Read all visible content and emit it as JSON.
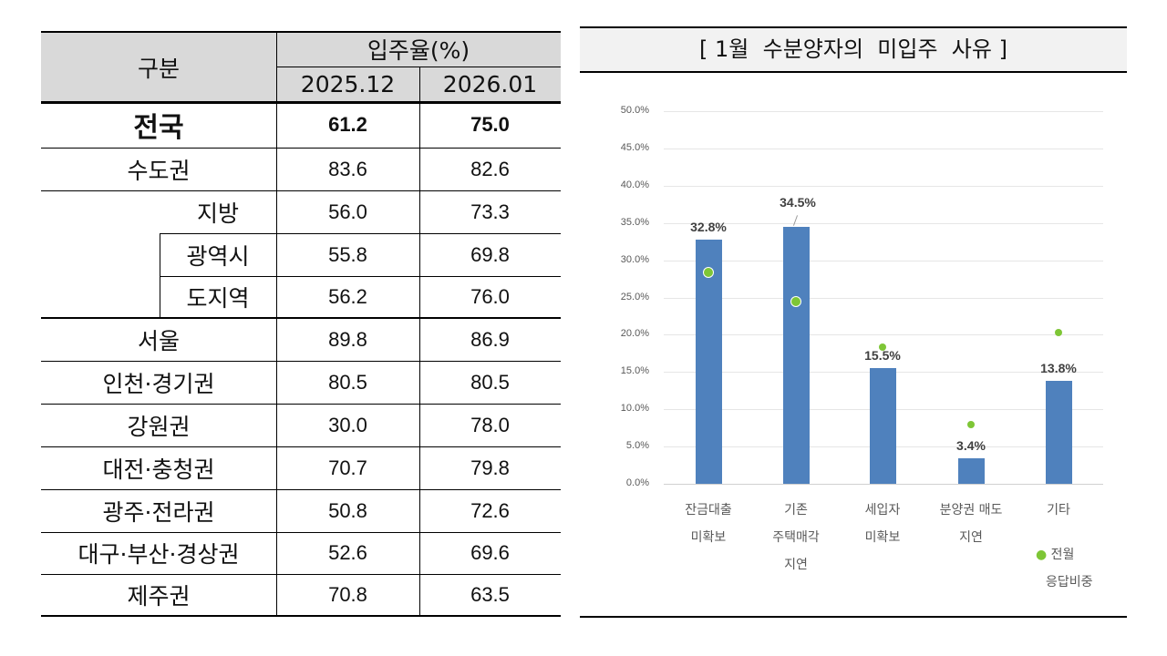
{
  "table": {
    "header_category": "구분",
    "header_group": "입주율(%)",
    "columns": [
      "2025.12",
      "2026.01"
    ],
    "rows": [
      {
        "label": "전국",
        "v1": "61.2",
        "v2": "75.0"
      },
      {
        "label": "수도권",
        "v1": "83.6",
        "v2": "82.6"
      },
      {
        "label": "지방",
        "v1": "56.0",
        "v2": "73.3"
      },
      {
        "label": "광역시",
        "v1": "55.8",
        "v2": "69.8"
      },
      {
        "label": "도지역",
        "v1": "56.2",
        "v2": "76.0"
      },
      {
        "label": "서울",
        "v1": "89.8",
        "v2": "86.9"
      },
      {
        "label": "인천·경기권",
        "v1": "80.5",
        "v2": "80.5"
      },
      {
        "label": "강원권",
        "v1": "30.0",
        "v2": "78.0"
      },
      {
        "label": "대전·충청권",
        "v1": "70.7",
        "v2": "79.8"
      },
      {
        "label": "광주·전라권",
        "v1": "50.8",
        "v2": "72.6"
      },
      {
        "label": "대구·부산·경상권",
        "v1": "52.6",
        "v2": "69.6"
      },
      {
        "label": "제주권",
        "v1": "70.8",
        "v2": "63.5"
      }
    ]
  },
  "chart_data": {
    "type": "bar",
    "title": "[ 1월  수분양자의  미입주  사유 ]",
    "categories": [
      "잔금대출\n미확보",
      "기존\n주택매각\n지연",
      "세입자\n미확보",
      "분양권 매도\n지연",
      "기타"
    ],
    "series": [
      {
        "values": [
          32.8,
          34.5,
          15.5,
          3.4,
          13.8
        ],
        "color": "#4f81bd",
        "labels": [
          "32.8%",
          "34.5%",
          "15.5%",
          "3.4%",
          "13.8%"
        ]
      },
      {
        "name": "전월 응답비중",
        "type": "scatter",
        "values": [
          28.4,
          24.4,
          18.3,
          8.0,
          20.3
        ],
        "color": "#7ec636"
      }
    ],
    "ylim": [
      0,
      50
    ],
    "yticks": [
      "0.0%",
      "5.0%",
      "10.0%",
      "15.0%",
      "20.0%",
      "25.0%",
      "30.0%",
      "35.0%",
      "40.0%",
      "45.0%",
      "50.0%"
    ],
    "grid": true,
    "legend": {
      "marker": "●",
      "line1": "전월",
      "line2": "응답비중",
      "position": "bottom-right"
    }
  }
}
